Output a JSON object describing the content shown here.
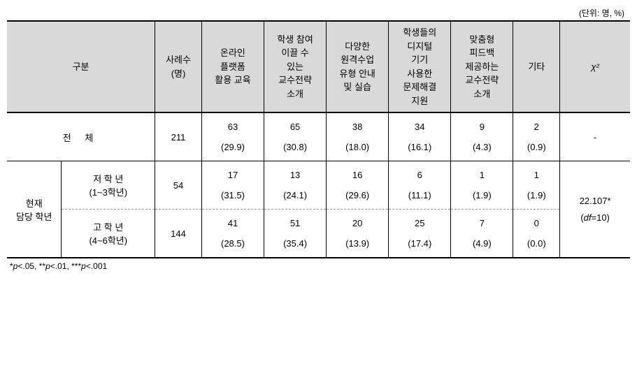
{
  "unit_label": "(단위: 명, %)",
  "headers": {
    "category": "구분",
    "sample": "사례수\n(명)",
    "col1": "온라인\n플랫폼\n활용 교육",
    "col2": "학생 참여\n이끌 수\n있는\n교수전략\n소개",
    "col3": "다양한\n원격수업\n유형 안내\n및 실습",
    "col4": "학생들의\n디지털\n기기\n사용한\n문제해결\n지원",
    "col5": "맞춤형\n피드백\n제공하는\n교수전략\n소개",
    "col6": "기타",
    "chi": "χ²"
  },
  "rows": {
    "total": {
      "label": "전 체",
      "sample": "211",
      "c1": {
        "v": "63",
        "p": "(29.9)"
      },
      "c2": {
        "v": "65",
        "p": "(30.8)"
      },
      "c3": {
        "v": "38",
        "p": "(18.0)"
      },
      "c4": {
        "v": "34",
        "p": "(16.1)"
      },
      "c5": {
        "v": "9",
        "p": "(4.3)"
      },
      "c6": {
        "v": "2",
        "p": "(0.9)"
      },
      "chi": "-"
    },
    "group_label": "현재\n담당 학년",
    "lower": {
      "label": "저 학 년\n(1~3학년)",
      "sample": "54",
      "c1": {
        "v": "17",
        "p": "(31.5)"
      },
      "c2": {
        "v": "13",
        "p": "(24.1)"
      },
      "c3": {
        "v": "16",
        "p": "(29.6)"
      },
      "c4": {
        "v": "6",
        "p": "(11.1)"
      },
      "c5": {
        "v": "1",
        "p": "(1.9)"
      },
      "c6": {
        "v": "1",
        "p": "(1.9)"
      }
    },
    "upper": {
      "label": "고 학 년\n(4~6학년)",
      "sample": "144",
      "c1": {
        "v": "41",
        "p": "(28.5)"
      },
      "c2": {
        "v": "51",
        "p": "(35.4)"
      },
      "c3": {
        "v": "20",
        "p": "(13.9)"
      },
      "c4": {
        "v": "25",
        "p": "(17.4)"
      },
      "c5": {
        "v": "7",
        "p": "(4.9)"
      },
      "c6": {
        "v": "0",
        "p": "(0.0)"
      }
    },
    "chi_value": "22.107*",
    "chi_df": "(df=10)"
  },
  "footnote_parts": {
    "p1a": "*",
    "p1b": "p",
    "p1c": "<.05,  ",
    "p2a": "**",
    "p2b": "p",
    "p2c": "<.01,  ",
    "p3a": "***",
    "p3b": "p",
    "p3c": "<.001"
  },
  "col_widths": [
    "70px",
    "120px",
    "60px",
    "80px",
    "80px",
    "80px",
    "80px",
    "80px",
    "60px",
    "90px"
  ]
}
